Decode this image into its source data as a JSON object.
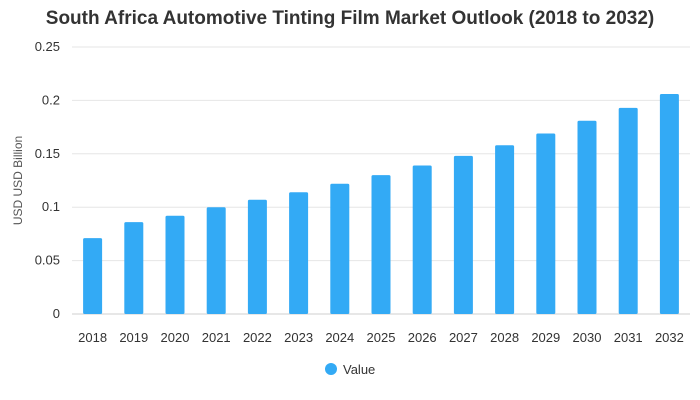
{
  "chart_data": {
    "type": "bar",
    "title": "South Africa Automotive Tinting Film Market Outlook (2018 to 2032)",
    "ylabel": "USD USD Billion",
    "xlabel": "",
    "categories": [
      "2018",
      "2019",
      "2020",
      "2021",
      "2022",
      "2023",
      "2024",
      "2025",
      "2026",
      "2027",
      "2028",
      "2029",
      "2030",
      "2031",
      "2032"
    ],
    "series": [
      {
        "name": "Value",
        "color": "#33aaf5",
        "values": [
          0.071,
          0.086,
          0.092,
          0.1,
          0.107,
          0.114,
          0.122,
          0.13,
          0.139,
          0.148,
          0.158,
          0.169,
          0.181,
          0.193,
          0.206
        ]
      }
    ],
    "ylim": [
      0,
      0.25
    ],
    "yticks": [
      {
        "value": 0,
        "label": "0"
      },
      {
        "value": 0.05,
        "label": "0.05"
      },
      {
        "value": 0.1,
        "label": "0.1"
      },
      {
        "value": 0.15,
        "label": "0.15"
      },
      {
        "value": 0.2,
        "label": "0.2"
      },
      {
        "value": 0.25,
        "label": "0.25"
      }
    ],
    "grid": true,
    "legend_position": "bottom"
  }
}
